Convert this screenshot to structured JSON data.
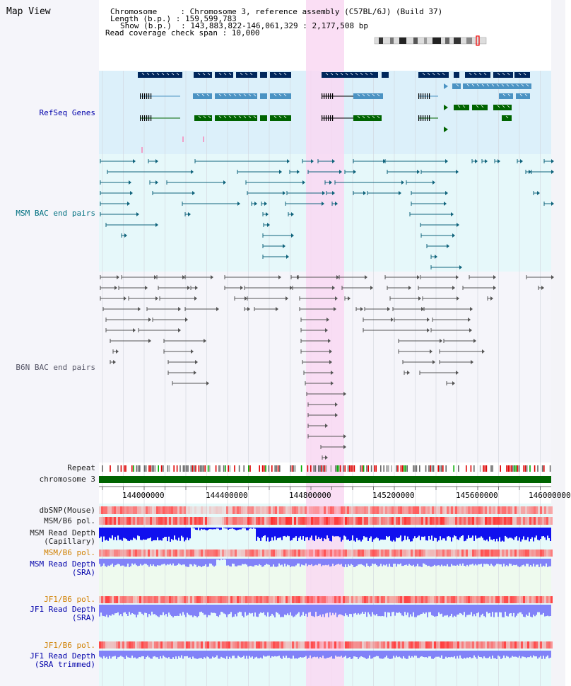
{
  "header": {
    "map_view": "Map View",
    "line1": "Chromosome     : Chromosome 3, reference assembly (C57BL/6J) (Build 37)",
    "line2": "Length (b.p.) : 159,599,783",
    "line3": "Show (b.p.)  : 143,883,822-146,061,329 : 2,177,508 bp",
    "line4": "Read coverage check span : 10,000"
  },
  "tracks": {
    "refseq": "RefSeq Genes",
    "msm_bac": "MSM BAC end pairs",
    "b6n_bac": "B6N BAC end pairs",
    "repeat": "Repeat",
    "chromosome": "chromosome 3",
    "dbsnp": "dbSNP(Mouse)",
    "msm_b6_pol_1": "MSM/B6 pol.",
    "msm_depth_cap_1": "MSM Read Depth",
    "msm_depth_cap_2": "(Capillary)",
    "msm_b6_pol_2": "MSM/B6 pol.",
    "msm_depth_sra_1": "MSM Read Depth",
    "msm_depth_sra_2": "(SRA)",
    "jf1_b6_pol_1": "JF1/B6 pol.",
    "jf1_depth_sra_1": "JF1 Read Depth",
    "jf1_depth_sra_2": "(SRA)",
    "jf1_b6_pol_2": "JF1/B6 pol.",
    "jf1_depth_trim_1": "JF1 Read Depth",
    "jf1_depth_trim_2": "(SRA trimmed)"
  },
  "axis": {
    "ticks": [
      "144000000",
      "144400000",
      "144800000",
      "145200000",
      "145600000",
      "146000000"
    ]
  },
  "colors": {
    "highlight": "#f9d8f2",
    "refseq_bg": "#dcf0fa",
    "msm_bg": "#e6f8fa",
    "gene_dark": "#00275c",
    "gene_mid": "#4b93c3",
    "gene_green": "#006400",
    "msm_line": "#10647c",
    "b6n_line": "#555555",
    "chrom_bar": "#006400",
    "snp_red": "#ff5a5a",
    "depth_blue": "#1010ee",
    "depth_light": "#7b7bf8"
  }
}
